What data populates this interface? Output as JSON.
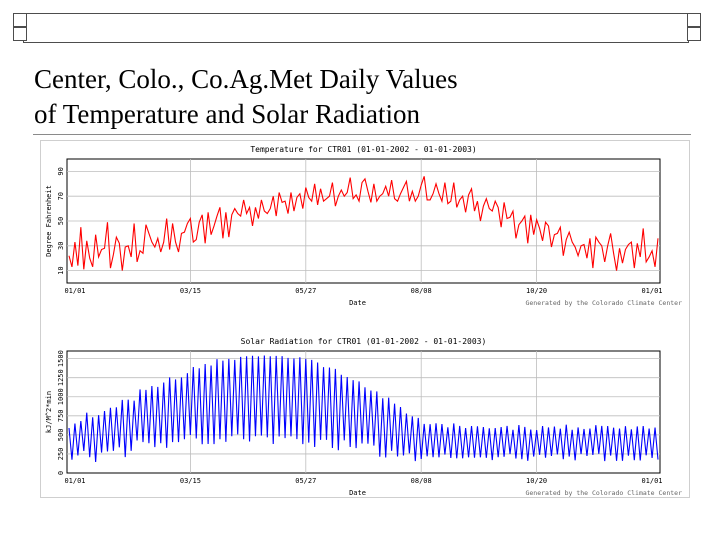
{
  "slide": {
    "title_line1": "Center, Colo., Co.Ag.Met Daily Values",
    "title_line2": "of Temperature and Solar Radiation"
  },
  "colors": {
    "temperature_series": "#ff0000",
    "solar_series": "#0000ff",
    "grid": "#bdbdbd",
    "frame_border": "#4d4d4d"
  },
  "chart_data": [
    {
      "type": "line",
      "title": "Temperature for CTR01 (01-01-2002 - 01-01-2003)",
      "xlabel": "Date",
      "ylabel": "Degree Fahrenheit",
      "credit": "Generated by the Colorado Climate Center",
      "ylim": [
        0,
        100
      ],
      "yticks": [
        10,
        30,
        50,
        70,
        90
      ],
      "xticks": [
        "01/01",
        "03/15",
        "05/27",
        "08/08",
        "10/20",
        "01/01"
      ],
      "grid": true,
      "series": [
        {
          "values": [
            22,
            13,
            33,
            14,
            45,
            11,
            34,
            20,
            13,
            39,
            21,
            27,
            28,
            49,
            12,
            23,
            37,
            32,
            10,
            29,
            30,
            21,
            48,
            17,
            26,
            24,
            47,
            40,
            33,
            29,
            36,
            25,
            33,
            52,
            27,
            48,
            33,
            25,
            40,
            41,
            48,
            52,
            33,
            35,
            49,
            55,
            32,
            57,
            39,
            46,
            54,
            61,
            36,
            57,
            37,
            55,
            60,
            56,
            54,
            67,
            56,
            61,
            46,
            61,
            52,
            67,
            58,
            56,
            60,
            70,
            54,
            73,
            65,
            66,
            56,
            73,
            58,
            69,
            72,
            60,
            77,
            69,
            66,
            80,
            63,
            76,
            66,
            68,
            70,
            81,
            62,
            70,
            75,
            70,
            73,
            85,
            68,
            71,
            66,
            81,
            84,
            74,
            65,
            80,
            66,
            70,
            72,
            78,
            70,
            83,
            68,
            66,
            72,
            77,
            82,
            66,
            74,
            66,
            70,
            79,
            86,
            67,
            67,
            72,
            80,
            72,
            66,
            81,
            64,
            66,
            81,
            61,
            67,
            70,
            57,
            71,
            76,
            58,
            66,
            50,
            62,
            68,
            60,
            58,
            66,
            61,
            45,
            65,
            52,
            53,
            58,
            36,
            47,
            50,
            54,
            32,
            55,
            39,
            51,
            44,
            34,
            49,
            46,
            29,
            39,
            40,
            45,
            22,
            35,
            41,
            33,
            29,
            22,
            30,
            31,
            20,
            36,
            12,
            37,
            33,
            30,
            17,
            30,
            40,
            24,
            10,
            28,
            16,
            27,
            31,
            33,
            12,
            32,
            21,
            44,
            17,
            21,
            26,
            13,
            36
          ]
        }
      ]
    },
    {
      "type": "line",
      "title": "Solar Radiation for CTR01 (01-01-2002 - 01-01-2003)",
      "xlabel": "Date",
      "ylabel": "kJ/M^2*min",
      "credit": "Generated by the Colorado Climate Center",
      "ylim": [
        0,
        1600
      ],
      "yticks": [
        0,
        250,
        500,
        750,
        1000,
        1250,
        1500
      ],
      "xticks": [
        "01/01",
        "03/15",
        "05/27",
        "08/08",
        "10/20",
        "01/01"
      ],
      "grid": true,
      "series": [
        {
          "values": [
            590,
            175,
            649,
            230,
            682,
            289,
            792,
            207,
            731,
            144,
            759,
            268,
            813,
            282,
            855,
            290,
            862,
            337,
            959,
            208,
            962,
            291,
            949,
            426,
            1097,
            406,
            1089,
            391,
            1140,
            340,
            1129,
            391,
            1186,
            329,
            1254,
            405,
            1228,
            406,
            1254,
            443,
            1310,
            499,
            1390,
            453,
            1373,
            378,
            1429,
            381,
            1409,
            379,
            1493,
            443,
            1474,
            408,
            1497,
            483,
            1483,
            507,
            1522,
            443,
            1531,
            414,
            1538,
            482,
            1530,
            490,
            1540,
            467,
            1531,
            380,
            1536,
            479,
            1533,
            458,
            1509,
            480,
            1503,
            444,
            1517,
            379,
            1497,
            398,
            1484,
            342,
            1449,
            435,
            1389,
            434,
            1384,
            328,
            1366,
            298,
            1288,
            428,
            1259,
            341,
            1218,
            326,
            1201,
            387,
            1124,
            384,
            1081,
            359,
            1070,
            214,
            980,
            204,
            988,
            290,
            910,
            217,
            865,
            230,
            780,
            258,
            743,
            157,
            723,
            184,
            643,
            219,
            640,
            207,
            651,
            205,
            642,
            241,
            600,
            197,
            650,
            193,
            617,
            193,
            590,
            205,
            615,
            201,
            612,
            206,
            603,
            199,
            586,
            170,
            590,
            207,
            603,
            213,
            618,
            248,
            567,
            190,
            629,
            181,
            605,
            159,
            570,
            216,
            563,
            239,
            615,
            201,
            598,
            223,
            609,
            244,
            581,
            181,
            633,
            215,
            567,
            166,
            598,
            249,
            577,
            223,
            583,
            236,
            627,
            252,
            618,
            157,
            616,
            228,
            595,
            160,
            583,
            159,
            614,
            227,
            573,
            168,
            611,
            164,
            616,
            232,
            583,
            198,
            596,
            176
          ]
        }
      ]
    }
  ]
}
